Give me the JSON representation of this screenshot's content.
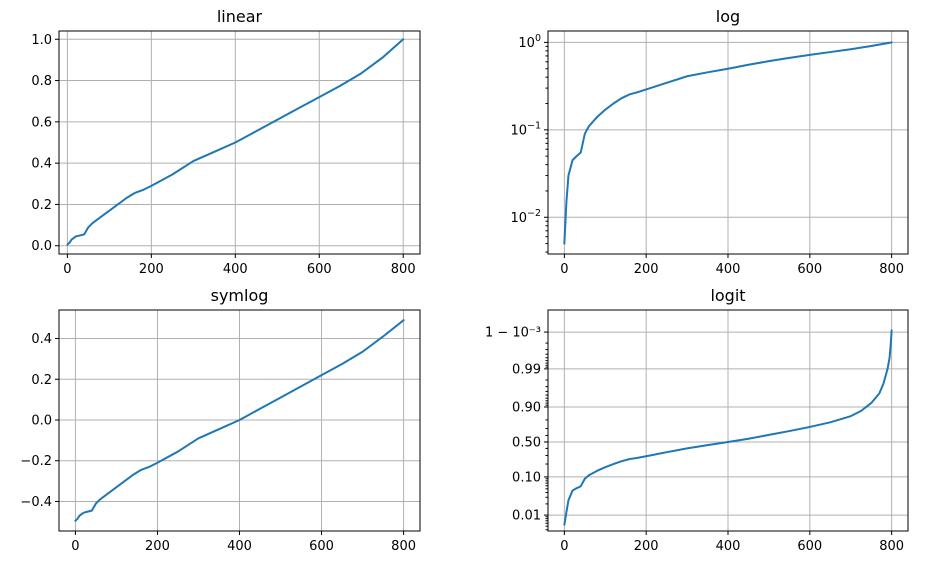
{
  "chart_data": [
    {
      "type": "line",
      "title": "linear",
      "yscale": "linear",
      "grid": true,
      "color": "#1f77b4",
      "xlim": [
        -20,
        840
      ],
      "ylim": [
        -0.04,
        1.04
      ],
      "xticks": [
        0,
        200,
        400,
        600,
        800
      ],
      "xtick_labels": [
        "0",
        "200",
        "400",
        "600",
        "800"
      ],
      "yticks": [
        0.0,
        0.2,
        0.4,
        0.6,
        0.8,
        1.0
      ],
      "ytick_labels": [
        "0.0",
        "0.2",
        "0.4",
        "0.6",
        "0.8",
        "1.0"
      ],
      "x": [
        0,
        5,
        10,
        20,
        30,
        40,
        50,
        60,
        80,
        100,
        120,
        140,
        160,
        180,
        200,
        250,
        300,
        350,
        400,
        450,
        500,
        550,
        600,
        650,
        700,
        750,
        800
      ],
      "y": [
        0.005,
        0.015,
        0.03,
        0.045,
        0.05,
        0.055,
        0.09,
        0.11,
        0.14,
        0.17,
        0.2,
        0.23,
        0.255,
        0.27,
        0.29,
        0.345,
        0.41,
        0.455,
        0.5,
        0.555,
        0.61,
        0.665,
        0.72,
        0.775,
        0.835,
        0.91,
        1.0
      ]
    },
    {
      "type": "line",
      "title": "log",
      "yscale": "log",
      "grid": true,
      "color": "#1f77b4",
      "xlim": [
        -40,
        840
      ],
      "ylim": [
        0.0038,
        1.35
      ],
      "xticks": [
        0,
        200,
        400,
        600,
        800
      ],
      "xtick_labels": [
        "0",
        "200",
        "400",
        "600",
        "800"
      ],
      "yticks": [
        0.01,
        0.1,
        1
      ],
      "ytick_labels": [
        [
          "10",
          "−2"
        ],
        [
          "10",
          "−1"
        ],
        [
          "10",
          "0"
        ]
      ],
      "x": [
        0,
        5,
        10,
        20,
        30,
        40,
        50,
        60,
        80,
        100,
        120,
        140,
        160,
        180,
        200,
        250,
        300,
        350,
        400,
        450,
        500,
        550,
        600,
        650,
        700,
        750,
        800
      ],
      "y": [
        0.005,
        0.015,
        0.03,
        0.045,
        0.05,
        0.055,
        0.09,
        0.11,
        0.14,
        0.17,
        0.2,
        0.23,
        0.255,
        0.27,
        0.29,
        0.345,
        0.41,
        0.455,
        0.5,
        0.555,
        0.61,
        0.665,
        0.72,
        0.775,
        0.835,
        0.91,
        1.0
      ]
    },
    {
      "type": "line",
      "title": "symlog",
      "yscale": "symlog",
      "grid": true,
      "color": "#1f77b4",
      "xlim": [
        -40,
        840
      ],
      "ylim": [
        -0.545,
        0.54
      ],
      "xticks": [
        0,
        200,
        400,
        600,
        800
      ],
      "xtick_labels": [
        "0",
        "200",
        "400",
        "600",
        "800"
      ],
      "yticks": [
        -0.4,
        -0.2,
        0.0,
        0.2,
        0.4
      ],
      "ytick_labels": [
        "−0.4",
        "−0.2",
        "0.0",
        "0.2",
        "0.4"
      ],
      "x": [
        0,
        5,
        10,
        20,
        30,
        40,
        50,
        60,
        80,
        100,
        120,
        140,
        160,
        180,
        200,
        250,
        300,
        350,
        400,
        450,
        500,
        550,
        600,
        650,
        700,
        750,
        800
      ],
      "y": [
        -0.495,
        -0.485,
        -0.47,
        -0.455,
        -0.45,
        -0.445,
        -0.41,
        -0.39,
        -0.36,
        -0.33,
        -0.3,
        -0.27,
        -0.245,
        -0.23,
        -0.21,
        -0.155,
        -0.09,
        -0.045,
        0.0,
        0.055,
        0.11,
        0.165,
        0.22,
        0.275,
        0.335,
        0.41,
        0.49
      ]
    },
    {
      "type": "line",
      "title": "logit",
      "yscale": "logit",
      "grid": true,
      "color": "#1f77b4",
      "xlim": [
        -40,
        840
      ],
      "ylim": [
        0.0037,
        0.99975
      ],
      "xticks": [
        0,
        200,
        400,
        600,
        800
      ],
      "xtick_labels": [
        "0",
        "200",
        "400",
        "600",
        "800"
      ],
      "yticks": [
        0.01,
        0.1,
        0.5,
        0.9,
        0.99,
        0.999
      ],
      "ytick_labels": [
        "0.01",
        "0.10",
        "0.50",
        "0.90",
        "0.99",
        "1 − 10⁻³"
      ],
      "x": [
        0,
        5,
        10,
        20,
        30,
        40,
        50,
        60,
        80,
        100,
        120,
        140,
        160,
        180,
        200,
        250,
        300,
        350,
        400,
        450,
        500,
        550,
        600,
        650,
        700,
        725,
        750,
        770,
        780,
        790,
        795,
        798,
        800
      ],
      "y": [
        0.0055,
        0.012,
        0.025,
        0.045,
        0.052,
        0.058,
        0.09,
        0.11,
        0.14,
        0.17,
        0.2,
        0.23,
        0.255,
        0.27,
        0.29,
        0.345,
        0.4,
        0.45,
        0.5,
        0.55,
        0.61,
        0.665,
        0.72,
        0.775,
        0.835,
        0.875,
        0.92,
        0.955,
        0.975,
        0.99,
        0.995,
        0.998,
        0.9991
      ]
    }
  ]
}
